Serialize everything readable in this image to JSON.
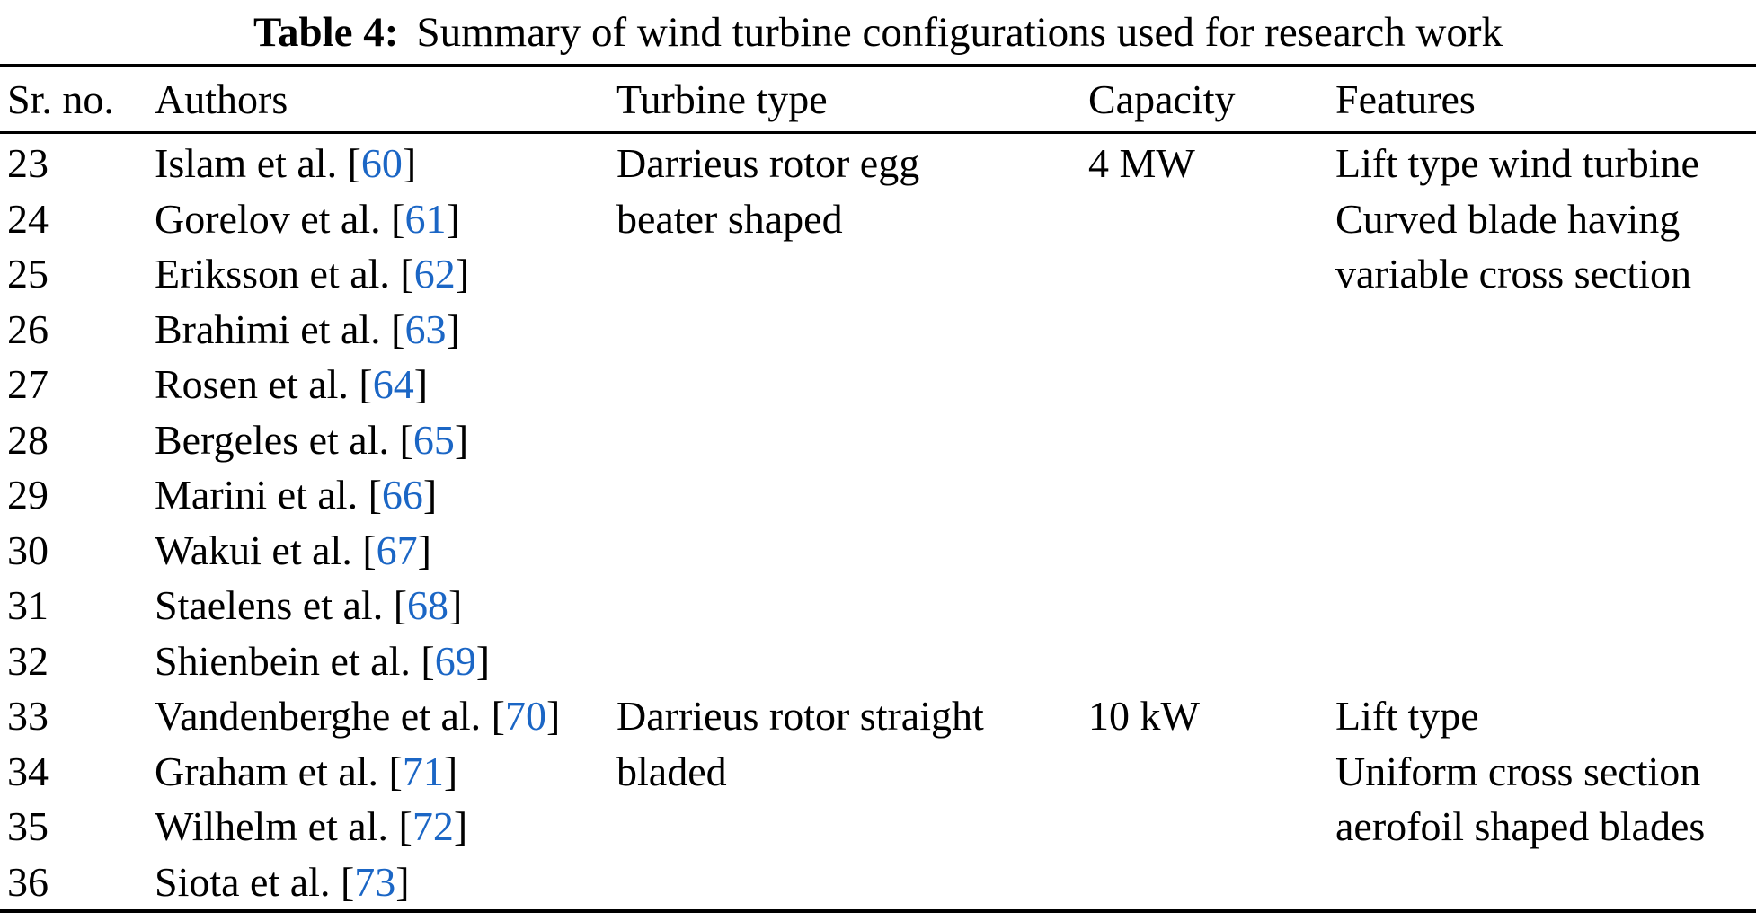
{
  "table": {
    "label": "Table 4:",
    "title": "Summary of wind turbine configurations used for research work",
    "columns": [
      "Sr. no.",
      "Authors",
      "Turbine type",
      "Capacity",
      "Features"
    ],
    "accent_color": "#1b66c5",
    "groups": [
      {
        "turbine_type_lines": [
          "Darrieus rotor egg",
          "beater shaped"
        ],
        "capacity": "4 MW",
        "features_lines": [
          "Lift type wind turbine",
          "Curved blade having",
          "variable cross section"
        ],
        "rows": [
          {
            "sr": "23",
            "author": "Islam et al.",
            "ref": "60"
          },
          {
            "sr": "24",
            "author": "Gorelov et al.",
            "ref": "61"
          },
          {
            "sr": "25",
            "author": "Eriksson et al.",
            "ref": "62"
          },
          {
            "sr": "26",
            "author": "Brahimi et al.",
            "ref": "63"
          },
          {
            "sr": "27",
            "author": "Rosen et al.",
            "ref": "64"
          },
          {
            "sr": "28",
            "author": "Bergeles et al.",
            "ref": "65"
          },
          {
            "sr": "29",
            "author": "Marini et al.",
            "ref": "66"
          },
          {
            "sr": "30",
            "author": "Wakui et al.",
            "ref": "67"
          },
          {
            "sr": "31",
            "author": "Staelens et al.",
            "ref": "68"
          },
          {
            "sr": "32",
            "author": "Shienbein et al.",
            "ref": "69"
          }
        ]
      },
      {
        "turbine_type_lines": [
          "Darrieus rotor straight",
          "bladed"
        ],
        "capacity": "10 kW",
        "features_lines": [
          "Lift type",
          "Uniform cross section",
          "aerofoil shaped blades"
        ],
        "rows": [
          {
            "sr": "33",
            "author": "Vandenberghe et al.",
            "ref": "70"
          },
          {
            "sr": "34",
            "author": "Graham et al.",
            "ref": "71"
          },
          {
            "sr": "35",
            "author": "Wilhelm et al.",
            "ref": "72"
          },
          {
            "sr": "36",
            "author": "Siota et al.",
            "ref": "73"
          }
        ]
      }
    ]
  }
}
